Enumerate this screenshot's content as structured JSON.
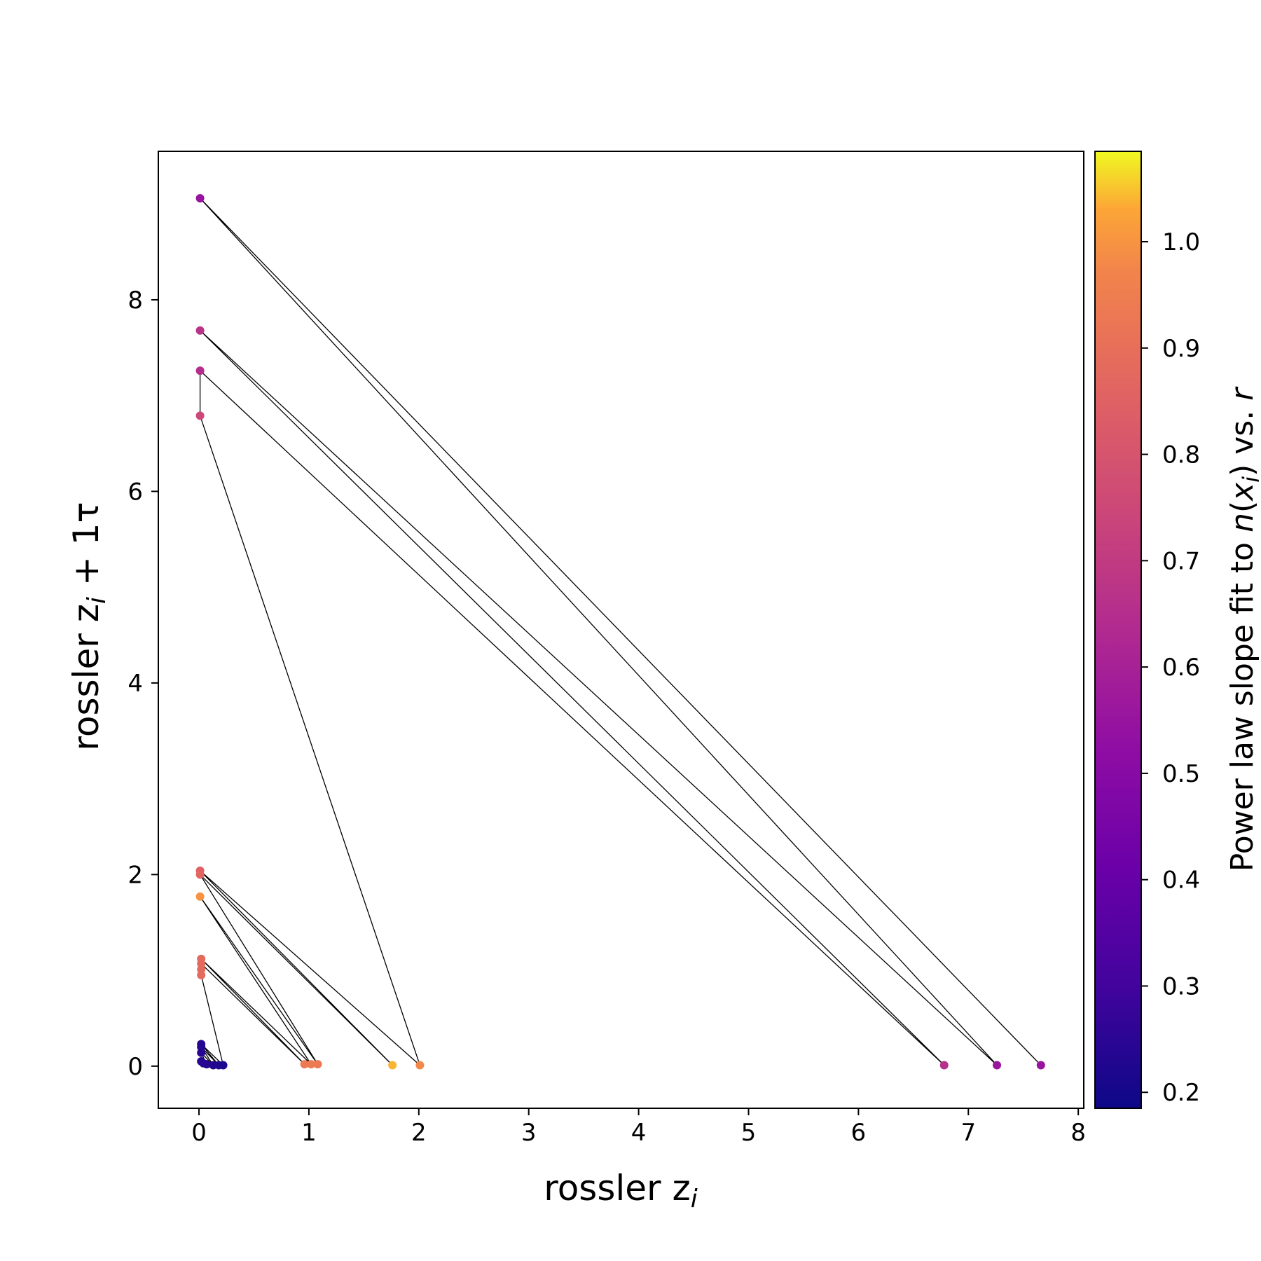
{
  "chart_data": {
    "type": "scatter",
    "xlabel": "rossler z",
    "xlabel_sub": "i",
    "ylabel": "rossler z",
    "ylabel_sub": "i",
    "ylabel_suffix": " + 1τ",
    "xlim": [
      -0.37,
      8.05
    ],
    "ylim": [
      -0.44,
      9.55
    ],
    "xticks": [
      0,
      1,
      2,
      3,
      4,
      5,
      6,
      7,
      8
    ],
    "yticks": [
      0,
      2,
      4,
      6,
      8
    ],
    "colorbar": {
      "label_pre": "Power law slope fit to ",
      "label_n": "n",
      "label_open": "(",
      "label_x": "x",
      "label_sub": "i",
      "label_close": ") vs. ",
      "label_r": "r",
      "range": [
        0.185,
        1.085
      ],
      "ticks": [
        "0.2",
        "0.3",
        "0.4",
        "0.5",
        "0.6",
        "0.7",
        "0.8",
        "0.9",
        "1.0"
      ],
      "colormap": "plasma"
    },
    "line_color": "#000000",
    "points": [
      {
        "x": 7.66,
        "y": 0.01,
        "c": 0.55
      },
      {
        "x": 0.01,
        "y": 9.06,
        "c": 0.55
      },
      {
        "x": 7.26,
        "y": 0.01,
        "c": 0.56
      },
      {
        "x": 0.01,
        "y": 7.68,
        "c": 0.67
      },
      {
        "x": 6.78,
        "y": 0.01,
        "c": 0.66
      },
      {
        "x": 0.01,
        "y": 7.26,
        "c": 0.65
      },
      {
        "x": 0.01,
        "y": 6.79,
        "c": 0.75
      },
      {
        "x": 2.01,
        "y": 0.01,
        "c": 0.98
      },
      {
        "x": 0.01,
        "y": 2.04,
        "c": 0.85
      },
      {
        "x": 1.76,
        "y": 0.01,
        "c": 1.04
      },
      {
        "x": 0.01,
        "y": 2.0,
        "c": 0.87
      },
      {
        "x": 1.08,
        "y": 0.02,
        "c": 0.93
      },
      {
        "x": 0.01,
        "y": 1.77,
        "c": 1.0
      },
      {
        "x": 1.02,
        "y": 0.02,
        "c": 0.94
      },
      {
        "x": 0.02,
        "y": 1.12,
        "c": 0.88
      },
      {
        "x": 0.96,
        "y": 0.02,
        "c": 0.93
      },
      {
        "x": 0.02,
        "y": 1.07,
        "c": 0.88
      },
      {
        "x": 0.02,
        "y": 1.01,
        "c": 0.88
      },
      {
        "x": 0.02,
        "y": 0.95,
        "c": 0.88
      },
      {
        "x": 0.22,
        "y": 0.01,
        "c": 0.22
      },
      {
        "x": 0.02,
        "y": 0.23,
        "c": 0.24
      },
      {
        "x": 0.18,
        "y": 0.01,
        "c": 0.22
      },
      {
        "x": 0.02,
        "y": 0.2,
        "c": 0.24
      },
      {
        "x": 0.13,
        "y": 0.01,
        "c": 0.23
      },
      {
        "x": 0.02,
        "y": 0.14,
        "c": 0.24
      },
      {
        "x": 0.07,
        "y": 0.02,
        "c": 0.23
      },
      {
        "x": 0.02,
        "y": 0.05,
        "c": 0.24
      },
      {
        "x": 0.04,
        "y": 0.03,
        "c": 0.24
      }
    ]
  }
}
